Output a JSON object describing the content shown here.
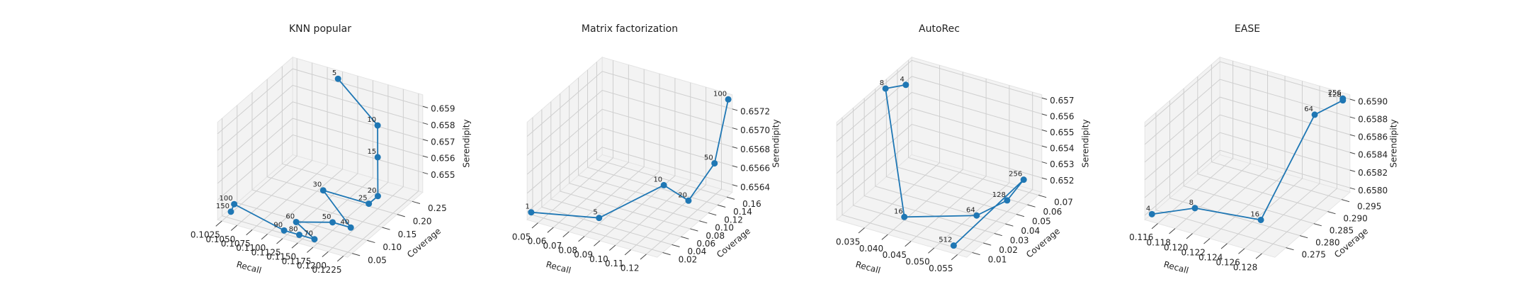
{
  "chart_data": [
    {
      "type": "line3d",
      "title": "KNN popular",
      "xlabel": "Recall",
      "ylabel": "Coverage",
      "zlabel": "Serendipity",
      "color": "#1f77b4",
      "grid": true,
      "labels": [
        5,
        10,
        15,
        20,
        25,
        30,
        40,
        50,
        60,
        70,
        80,
        90,
        100,
        150
      ],
      "x": [
        0.11,
        0.118,
        0.119,
        0.1215,
        0.121,
        0.113,
        0.121,
        0.118,
        0.113,
        0.117,
        0.1145,
        0.112,
        0.1028,
        0.103
      ],
      "y": [
        0.27,
        0.24,
        0.22,
        0.17,
        0.15,
        0.16,
        0.09,
        0.09,
        0.07,
        0.05,
        0.05,
        0.05,
        0.07,
        0.055
      ],
      "z": [
        0.6595,
        0.658,
        0.6565,
        0.6552,
        0.655,
        0.6548,
        0.6545,
        0.6545,
        0.6543,
        0.654,
        0.654,
        0.654,
        0.6543,
        0.6541
      ],
      "xlim": [
        0.1018,
        0.1232
      ],
      "ylim": [
        0.035,
        0.285
      ],
      "zlim": [
        0.6538,
        0.6597
      ],
      "xticks": [
        0.1025,
        {
          "value": 0.105,
          "label": "0.1050"
        },
        0.1075,
        {
          "value": 0.11,
          "label": "0.1100"
        },
        0.1125,
        {
          "value": 0.115,
          "label": "0.1150"
        },
        0.1175,
        {
          "value": 0.12,
          "label": "0.1200"
        },
        0.1225
      ],
      "yticks": [
        0.05,
        {
          "value": 0.1,
          "label": "0.10"
        },
        0.15,
        {
          "value": 0.2,
          "label": "0.20"
        },
        0.25
      ],
      "zticks": [
        0.655,
        0.656,
        0.657,
        0.658,
        0.659
      ]
    },
    {
      "type": "line3d",
      "title": "Matrix factorization",
      "xlabel": "Recall",
      "ylabel": "Coverage",
      "zlabel": "Serendipity",
      "color": "#1f77b4",
      "grid": true,
      "labels": [
        1,
        5,
        10,
        20,
        50,
        100
      ],
      "x": [
        0.045,
        0.08,
        0.11,
        0.12,
        0.125,
        0.125
      ],
      "y": [
        0.01,
        0.04,
        0.08,
        0.1,
        0.14,
        0.17
      ],
      "z": [
        0.6564,
        0.65638,
        0.6567,
        0.6565,
        0.65675,
        0.6573
      ],
      "xlim": [
        0.043,
        0.127
      ],
      "ylim": [
        0.008,
        0.172
      ],
      "zlim": [
        0.65632,
        0.65735
      ],
      "xticks": [
        0.05,
        0.06,
        0.07,
        0.08,
        0.09,
        {
          "value": 0.1,
          "label": "0.10"
        },
        0.11,
        0.12
      ],
      "yticks": [
        0.02,
        0.04,
        0.06,
        0.08,
        {
          "value": 0.1,
          "label": "0.10"
        },
        0.12,
        0.14,
        0.16
      ],
      "zticks": [
        0.6564,
        0.6566,
        0.6568,
        {
          "value": 0.657,
          "label": "0.6570"
        },
        0.6572
      ]
    },
    {
      "type": "line3d",
      "title": "AutoRec",
      "xlabel": "Recall",
      "ylabel": "Coverage",
      "zlabel": "Serendipity",
      "color": "#1f77b4",
      "grid": true,
      "labels": [
        4,
        8,
        16,
        64,
        128,
        256,
        512
      ],
      "x": [
        0.032,
        0.03,
        0.04,
        0.052,
        0.055,
        0.055,
        0.053
      ],
      "y": [
        0.055,
        0.045,
        0.02,
        0.035,
        0.05,
        0.065,
        0.01
      ],
      "z": [
        0.6568,
        0.657,
        0.6513,
        0.6515,
        0.6518,
        0.6522,
        0.6512
      ],
      "xlim": [
        0.029,
        0.057
      ],
      "ylim": [
        0.005,
        0.073
      ],
      "zlim": [
        0.6511,
        0.6572
      ],
      "xticks": [
        0.035,
        {
          "value": 0.04,
          "label": "0.040"
        },
        0.045,
        {
          "value": 0.05,
          "label": "0.050"
        },
        0.055
      ],
      "yticks": [
        0.01,
        0.02,
        0.03,
        0.04,
        0.05,
        0.06,
        0.07
      ],
      "zticks": [
        0.652,
        0.653,
        0.654,
        0.655,
        0.656,
        0.657
      ]
    },
    {
      "type": "line3d",
      "title": "EASE",
      "xlabel": "Recall",
      "ylabel": "Coverage",
      "zlabel": "Serendipity",
      "color": "#1f77b4",
      "grid": true,
      "labels": [
        4,
        8,
        16,
        64,
        128,
        256
      ],
      "x": [
        0.115,
        0.119,
        0.125,
        0.128,
        0.129,
        0.129
      ],
      "y": [
        0.272,
        0.275,
        0.28,
        0.29,
        0.297,
        0.297
      ],
      "z": [
        0.658,
        0.6581,
        0.658,
        0.659,
        0.659,
        0.65902
      ],
      "xlim": [
        0.1145,
        0.1295
      ],
      "ylim": [
        0.271,
        0.298
      ],
      "zlim": [
        0.65795,
        0.65905
      ],
      "xticks": [
        0.116,
        0.118,
        {
          "value": 0.12,
          "label": "0.120"
        },
        0.122,
        0.124,
        0.126,
        0.128
      ],
      "yticks": [
        0.275,
        {
          "value": 0.28,
          "label": "0.280"
        },
        0.285,
        {
          "value": 0.29,
          "label": "0.290"
        },
        0.295
      ],
      "zticks": [
        {
          "value": 0.658,
          "label": "0.6580"
        },
        0.6582,
        0.6584,
        0.6586,
        0.6588,
        {
          "value": 0.659,
          "label": "0.6590"
        }
      ]
    }
  ]
}
